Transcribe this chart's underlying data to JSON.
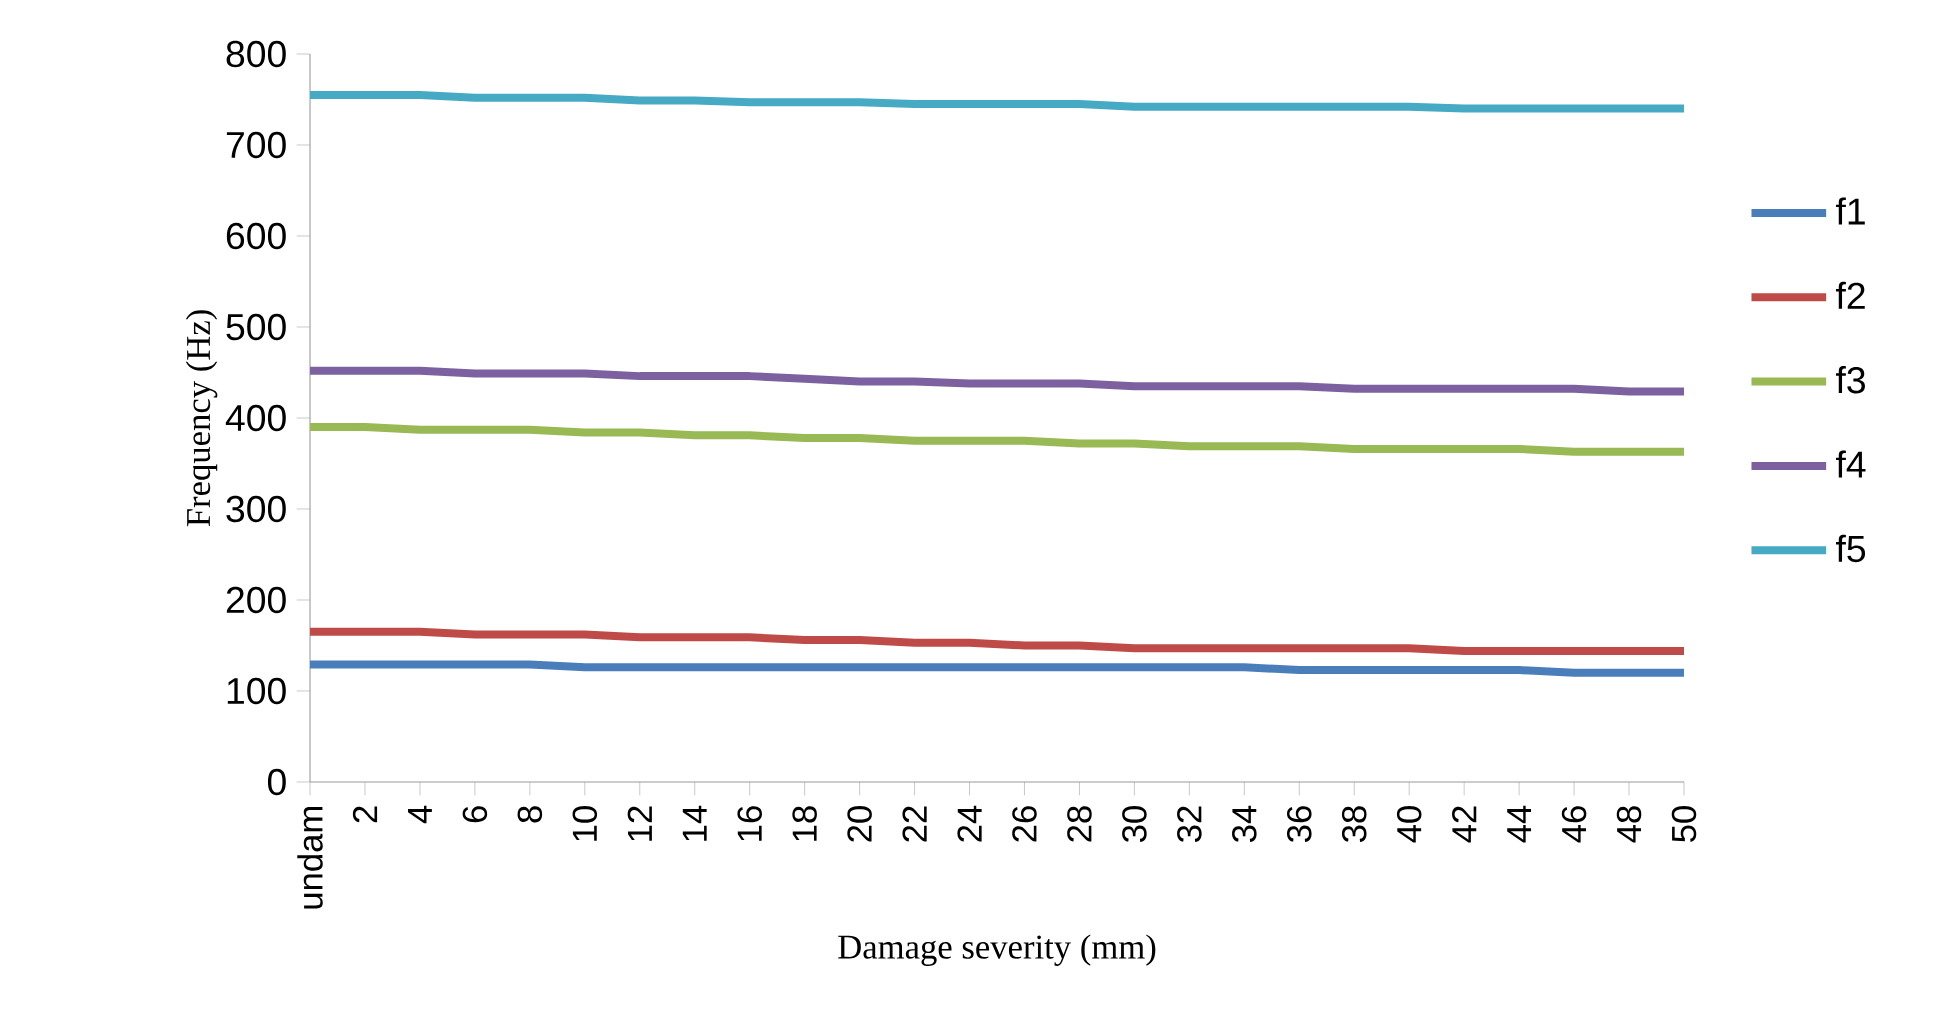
{
  "chart_data": {
    "type": "line",
    "xlabel": "Damage severity (mm)",
    "ylabel": "Frequency (Hz)",
    "categories": [
      "undam",
      "2",
      "4",
      "6",
      "8",
      "10",
      "12",
      "14",
      "16",
      "18",
      "20",
      "22",
      "24",
      "26",
      "28",
      "30",
      "32",
      "34",
      "36",
      "38",
      "40",
      "42",
      "44",
      "46",
      "48",
      "50"
    ],
    "ylim": [
      0,
      800
    ],
    "yticks": [
      0,
      100,
      200,
      300,
      400,
      500,
      600,
      700,
      800
    ],
    "legend": "right",
    "marker": "none",
    "line_style": "solid",
    "series": [
      {
        "name": "f1",
        "color": "#4a7ebb",
        "values": [
          129,
          129,
          129,
          129,
          129,
          126,
          126,
          126,
          126,
          126,
          126,
          126,
          126,
          126,
          126,
          126,
          126,
          126,
          123,
          123,
          123,
          123,
          123,
          120,
          120,
          120
        ]
      },
      {
        "name": "f2",
        "color": "#be4b48",
        "values": [
          165,
          165,
          165,
          162,
          162,
          162,
          159,
          159,
          159,
          156,
          156,
          153,
          153,
          150,
          150,
          147,
          147,
          147,
          147,
          147,
          147,
          144,
          144,
          144,
          144,
          144
        ]
      },
      {
        "name": "f3",
        "color": "#98b954",
        "values": [
          390,
          390,
          387,
          387,
          387,
          384,
          384,
          381,
          381,
          378,
          378,
          375,
          375,
          375,
          372,
          372,
          369,
          369,
          369,
          366,
          366,
          366,
          366,
          363,
          363,
          363
        ]
      },
      {
        "name": "f4",
        "color": "#7d60a0",
        "values": [
          452,
          452,
          452,
          449,
          449,
          449,
          446,
          446,
          446,
          443,
          440,
          440,
          438,
          438,
          438,
          435,
          435,
          435,
          435,
          432,
          432,
          432,
          432,
          432,
          429,
          429
        ]
      },
      {
        "name": "f5",
        "color": "#46aac5",
        "values": [
          755,
          755,
          755,
          752,
          752,
          752,
          749,
          749,
          747,
          747,
          747,
          745,
          745,
          745,
          745,
          742,
          742,
          742,
          742,
          742,
          742,
          740,
          740,
          740,
          740,
          740
        ]
      }
    ]
  }
}
